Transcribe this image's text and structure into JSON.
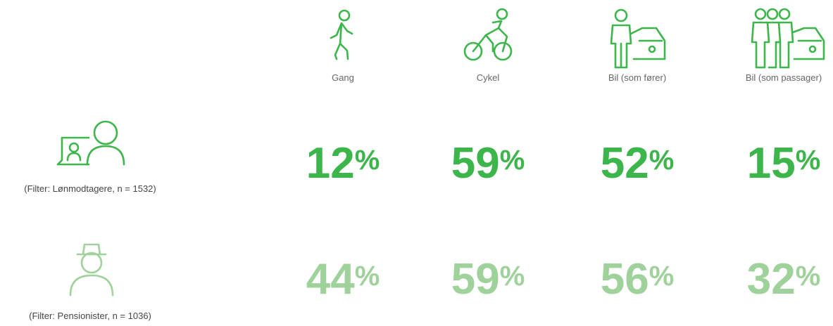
{
  "columns": [
    "Gang",
    "Cykel",
    "Bil (som fører)",
    "Bil (som passager)"
  ],
  "rows": [
    {
      "label": "(Filter: Lønmodtagere, n = 1532)",
      "cells": [
        {
          "number": "12",
          "unit": "%"
        },
        {
          "number": "59",
          "unit": "%"
        },
        {
          "number": "52",
          "unit": "%"
        },
        {
          "number": "15",
          "unit": "%"
        }
      ]
    },
    {
      "label": "(Filter: Pensionister, n = 1036)",
      "cells": [
        {
          "number": "44",
          "unit": "%"
        },
        {
          "number": "59",
          "unit": "%"
        },
        {
          "number": "56",
          "unit": "%"
        },
        {
          "number": "32",
          "unit": "%"
        }
      ]
    }
  ]
}
